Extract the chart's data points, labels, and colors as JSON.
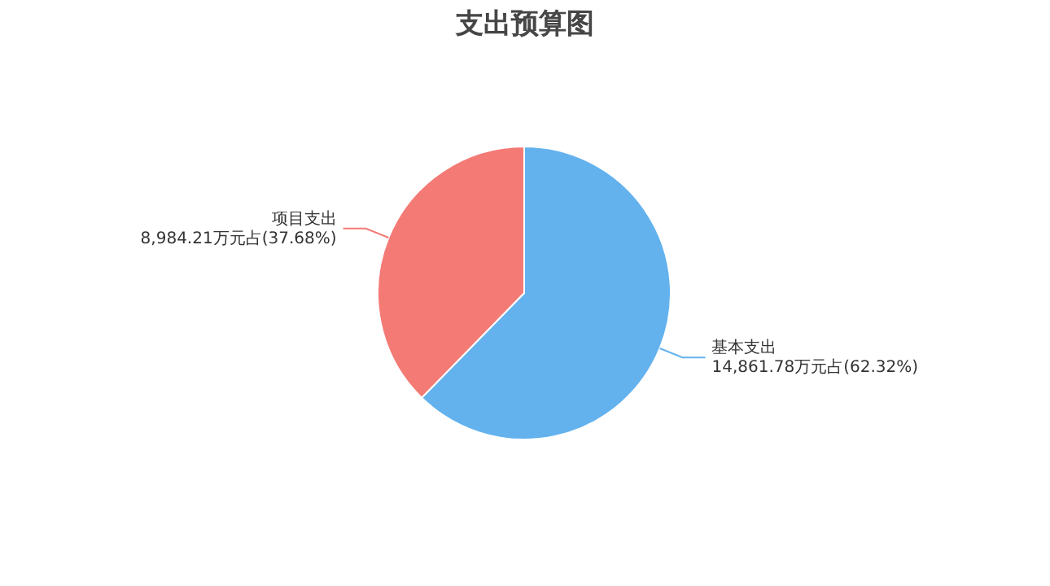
{
  "chart_data": {
    "type": "pie",
    "title": "支出预算图",
    "categories": [
      "基本支出",
      "项目支出"
    ],
    "values": [
      14861.78,
      8984.21
    ],
    "value_labels": [
      "14,861.78万元占(62.32%)",
      "8,984.21万元占(37.68%)"
    ],
    "colors": [
      "#63b2ee",
      "#f47a75"
    ]
  }
}
